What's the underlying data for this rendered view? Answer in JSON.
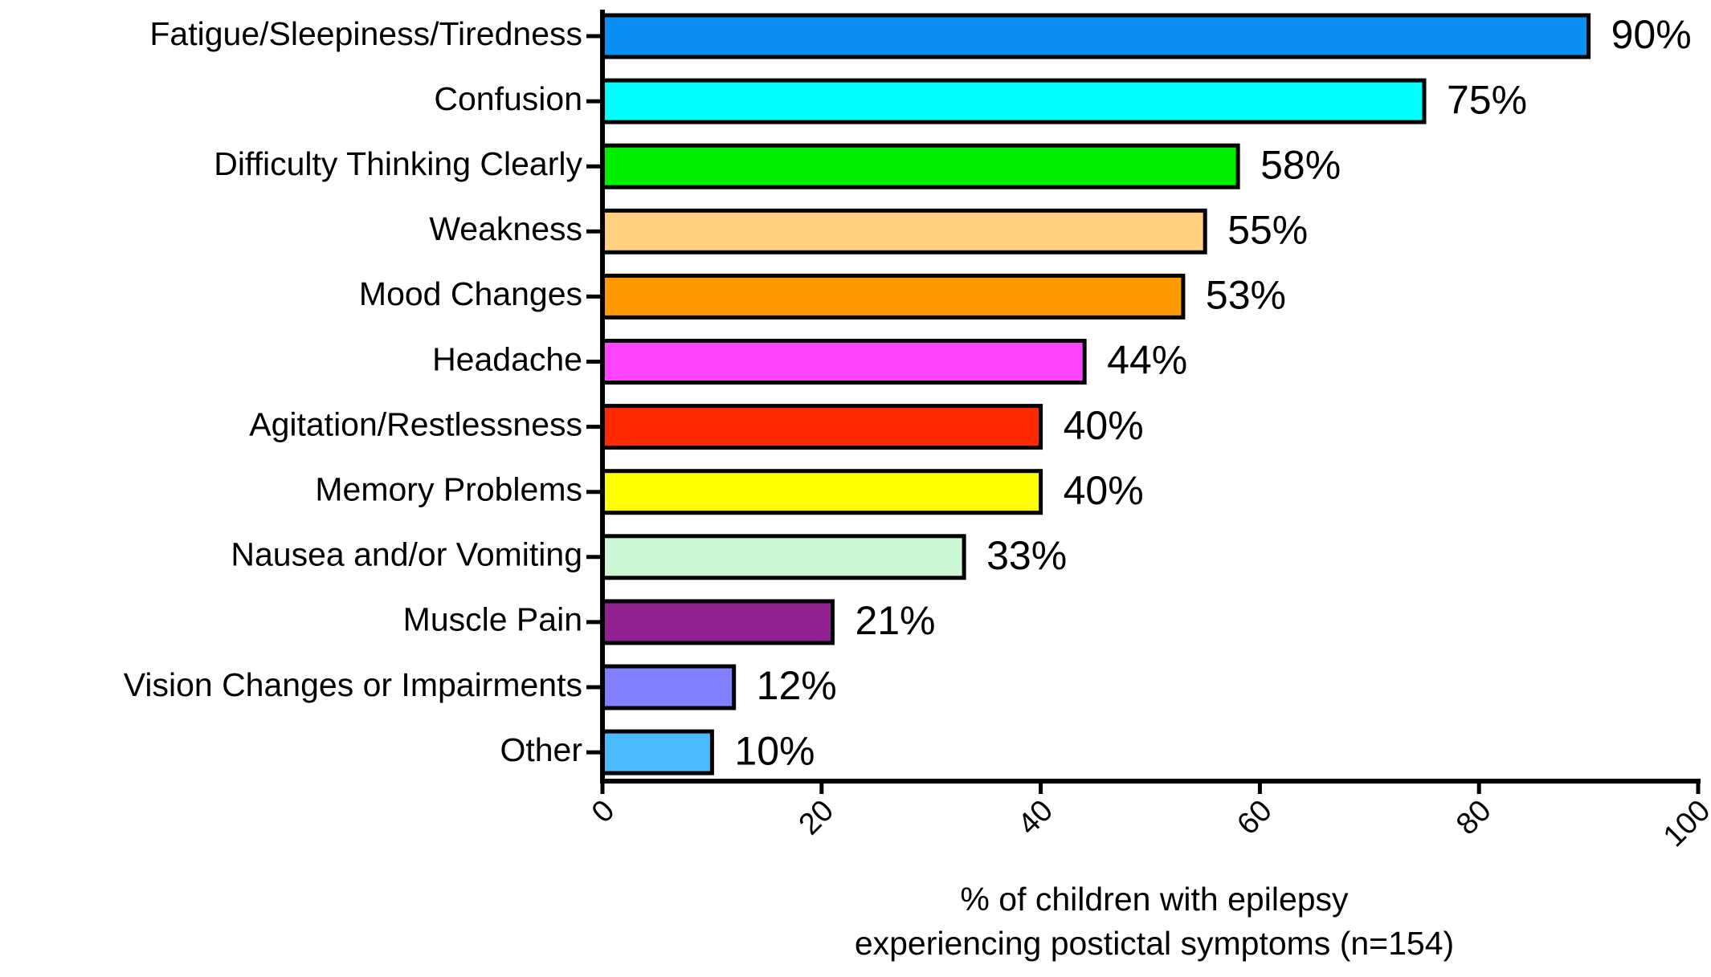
{
  "chart_data": {
    "type": "hbar",
    "categories": [
      "Fatigue/Sleepiness/Tiredness",
      "Confusion",
      "Difficulty Thinking Clearly",
      "Weakness",
      "Mood Changes",
      "Headache",
      "Agitation/Restlessness",
      "Memory Problems",
      "Nausea and/or Vomiting",
      "Muscle Pain",
      "Vision Changes or Impairments",
      "Other"
    ],
    "values": [
      90,
      75,
      58,
      55,
      53,
      44,
      40,
      40,
      33,
      21,
      12,
      10
    ],
    "value_labels": [
      "90%",
      "75%",
      "58%",
      "55%",
      "53%",
      "44%",
      "40%",
      "40%",
      "33%",
      "21%",
      "12%",
      "10%"
    ],
    "colors": [
      "#0a8ff5",
      "#00ffff",
      "#00ee00",
      "#ffd080",
      "#ff9900",
      "#ff44ff",
      "#ff2a00",
      "#ffff00",
      "#ccf7d5",
      "#932293",
      "#8080ff",
      "#4bbbff"
    ],
    "xlim": [
      0,
      100
    ],
    "xticks": [
      0,
      20,
      40,
      60,
      80,
      100
    ],
    "x_label": [
      "% of children with epilepsy",
      "experiencing postictal symptoms (n=154)"
    ]
  }
}
